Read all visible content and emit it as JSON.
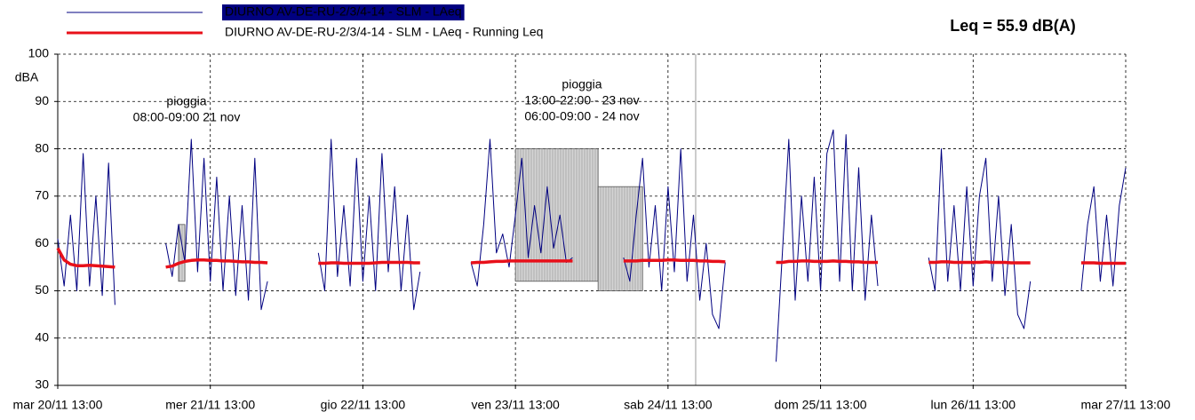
{
  "chart_data": {
    "type": "line",
    "summary": "Leq = 55.9 dB(A)",
    "y_label": "dBA",
    "annotations": [
      [
        "pioggia",
        "08:00-09:00 21 nov"
      ],
      [
        "pioggia",
        "13:00-22:00 - 23 nov",
        "06:00-09:00 - 24 nov"
      ]
    ],
    "grid": true,
    "ylim": [
      30,
      100
    ],
    "yticks": [
      30,
      40,
      50,
      60,
      70,
      80,
      90,
      100
    ],
    "xlim": [
      "20/11 13:00",
      "27/11 13:00"
    ],
    "xticks": [
      {
        "value": "20/11 13:00",
        "label": "mar 20/11 13:00"
      },
      {
        "value": "21/11 13:00",
        "label": "mer 21/11 13:00"
      },
      {
        "value": "22/11 13:00",
        "label": "gio 22/11 13:00"
      },
      {
        "value": "23/11 13:00",
        "label": "ven 23/11 13:00"
      },
      {
        "value": "24/11 13:00",
        "label": "sab 24/11 13:00"
      },
      {
        "value": "25/11 13:00",
        "label": "dom 25/11 13:00"
      },
      {
        "value": "26/11 13:00",
        "label": "lun 26/11 13:00"
      },
      {
        "value": "27/11 13:00",
        "label": "mar 27/11 13:00"
      }
    ],
    "shaded_regions": [
      {
        "x": [
          "21/11 08:00",
          "21/11 09:00"
        ],
        "y": [
          52,
          64
        ]
      },
      {
        "x": [
          "23/11 13:00",
          "24/11 02:00"
        ],
        "y": [
          52,
          80
        ]
      },
      {
        "x": [
          "24/11 02:00",
          "24/11 09:00"
        ],
        "y": [
          50,
          72
        ]
      }
    ],
    "x": [
      "20/11 13:00",
      "20/11 14:00",
      "20/11 15:00",
      "20/11 16:00",
      "20/11 17:00",
      "20/11 18:00",
      "20/11 19:00",
      "20/11 20:00",
      "20/11 21:00",
      "20/11 22:00",
      "21/11 00:00",
      "21/11 06:00",
      "21/11 07:00",
      "21/11 08:00",
      "21/11 09:00",
      "21/11 10:00",
      "21/11 11:00",
      "21/11 12:00",
      "21/11 13:00",
      "21/11 14:00",
      "21/11 15:00",
      "21/11 16:00",
      "21/11 17:00",
      "21/11 18:00",
      "21/11 19:00",
      "21/11 20:00",
      "21/11 21:00",
      "21/11 22:00",
      "22/11 00:00",
      "22/11 06:00",
      "22/11 07:00",
      "22/11 08:00",
      "22/11 09:00",
      "22/11 10:00",
      "22/11 11:00",
      "22/11 12:00",
      "22/11 13:00",
      "22/11 14:00",
      "22/11 15:00",
      "22/11 16:00",
      "22/11 17:00",
      "22/11 18:00",
      "22/11 19:00",
      "22/11 20:00",
      "22/11 21:00",
      "22/11 22:00",
      "23/11 00:00",
      "23/11 06:00",
      "23/11 07:00",
      "23/11 08:00",
      "23/11 09:00",
      "23/11 10:00",
      "23/11 11:00",
      "23/11 12:00",
      "23/11 13:00",
      "23/11 14:00",
      "23/11 15:00",
      "23/11 16:00",
      "23/11 17:00",
      "23/11 18:00",
      "23/11 19:00",
      "23/11 20:00",
      "23/11 21:00",
      "23/11 22:00",
      "24/11 00:00",
      "24/11 06:00",
      "24/11 07:00",
      "24/11 08:00",
      "24/11 09:00",
      "24/11 10:00",
      "24/11 11:00",
      "24/11 12:00",
      "24/11 13:00",
      "24/11 14:00",
      "24/11 15:00",
      "24/11 16:00",
      "24/11 17:00",
      "24/11 18:00",
      "24/11 19:00",
      "24/11 20:00",
      "24/11 21:00",
      "24/11 22:00",
      "25/11 00:00",
      "25/11 06:00",
      "25/11 07:00",
      "25/11 08:00",
      "25/11 09:00",
      "25/11 10:00",
      "25/11 11:00",
      "25/11 12:00",
      "25/11 13:00",
      "25/11 14:00",
      "25/11 15:00",
      "25/11 16:00",
      "25/11 17:00",
      "25/11 18:00",
      "25/11 19:00",
      "25/11 20:00",
      "25/11 21:00",
      "25/11 22:00",
      "26/11 00:00",
      "26/11 06:00",
      "26/11 07:00",
      "26/11 08:00",
      "26/11 09:00",
      "26/11 10:00",
      "26/11 11:00",
      "26/11 12:00",
      "26/11 13:00",
      "26/11 14:00",
      "26/11 15:00",
      "26/11 16:00",
      "26/11 17:00",
      "26/11 18:00",
      "26/11 19:00",
      "26/11 20:00",
      "26/11 21:00",
      "26/11 22:00",
      "27/11 00:00",
      "27/11 06:00",
      "27/11 07:00",
      "27/11 08:00",
      "27/11 09:00",
      "27/11 10:00",
      "27/11 11:00",
      "27/11 12:00",
      "27/11 13:00"
    ],
    "series": [
      {
        "name": "DIURNO AV-DE-RU-2/3/4-14 - SLM - LAeq",
        "color": "#000080",
        "values": [
          61,
          51,
          66,
          50,
          79,
          51,
          70,
          49,
          77,
          47,
          null,
          60,
          53,
          64,
          56,
          82,
          54,
          78,
          52,
          74,
          50,
          70,
          49,
          68,
          48,
          78,
          46,
          52,
          null,
          58,
          50,
          82,
          53,
          68,
          51,
          78,
          52,
          70,
          50,
          79,
          54,
          72,
          50,
          66,
          46,
          54,
          null,
          56,
          51,
          64,
          82,
          58,
          62,
          55,
          66,
          78,
          57,
          68,
          58,
          72,
          59,
          66,
          56,
          57,
          null,
          57,
          52,
          66,
          78,
          55,
          68,
          50,
          72,
          54,
          80,
          52,
          66,
          48,
          60,
          45,
          42,
          56,
          null,
          35,
          58,
          82,
          48,
          70,
          52,
          74,
          50,
          79,
          84,
          52,
          83,
          50,
          76,
          48,
          66,
          51,
          null,
          57,
          50,
          80,
          52,
          68,
          50,
          72,
          51,
          70,
          78,
          52,
          70,
          49,
          64,
          45,
          42,
          52,
          null,
          50,
          64,
          72,
          52,
          66,
          51,
          68,
          76
        ]
      },
      {
        "name": "DIURNO AV-DE-RU-2/3/4-14 - SLM - LAeq - Running Leq",
        "color": "#e8101a",
        "values": [
          59,
          56.5,
          55.6,
          55.3,
          55.3,
          55.4,
          55.3,
          55.2,
          55.1,
          55,
          null,
          55,
          55.2,
          55.8,
          56.2,
          56.4,
          56.5,
          56.5,
          56.4,
          56.4,
          56.3,
          56.3,
          56.2,
          56.1,
          56.1,
          56,
          56,
          55.9,
          null,
          55.8,
          55.8,
          55.9,
          55.9,
          55.8,
          55.8,
          55.8,
          55.8,
          55.8,
          55.9,
          56,
          56,
          56,
          56,
          56,
          55.9,
          55.9,
          null,
          55.9,
          56,
          56,
          56.1,
          56.2,
          56.2,
          56.3,
          56.3,
          56.3,
          56.3,
          56.3,
          56.3,
          56.3,
          56.3,
          56.3,
          56.3,
          56.3,
          null,
          56.3,
          56.3,
          56.3,
          56.4,
          56.4,
          56.4,
          56.4,
          56.5,
          56.5,
          56.4,
          56.4,
          56.4,
          56.3,
          56.3,
          56.2,
          56.2,
          56.1,
          null,
          56,
          56,
          56.2,
          56.2,
          56.3,
          56.3,
          56.2,
          56.2,
          56.2,
          56.3,
          56.2,
          56.2,
          56.1,
          56.1,
          56,
          56,
          56,
          null,
          56,
          56,
          56.1,
          56.1,
          56,
          56,
          56,
          56,
          56,
          56.1,
          56,
          56,
          56,
          55.9,
          55.9,
          55.9,
          55.9,
          null,
          55.9,
          55.9,
          55.9,
          55.8,
          55.8,
          55.8,
          55.8,
          55.8
        ]
      }
    ]
  }
}
